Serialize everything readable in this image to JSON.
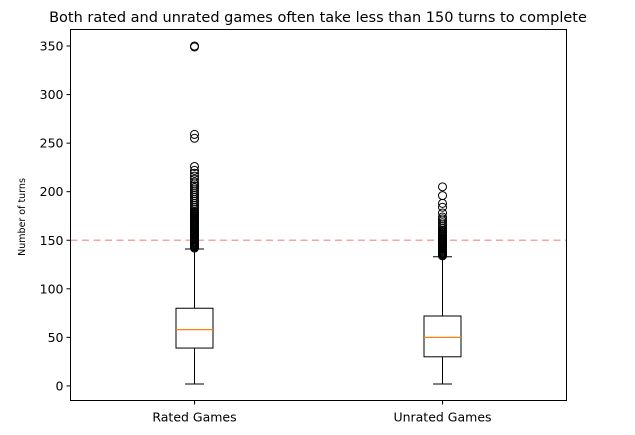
{
  "chart_data": {
    "type": "box",
    "title": "Both rated and unrated games often take less than 150 turns to complete",
    "xlabel": "",
    "ylabel": "Number of turns",
    "categories": [
      "Rated Games",
      "Unrated Games"
    ],
    "ylim": [
      -15,
      367
    ],
    "yticks": [
      0,
      50,
      100,
      150,
      200,
      250,
      300,
      350
    ],
    "grid": false,
    "reference_line": {
      "y": 150,
      "color": "#f4a6a6",
      "style": "dashed"
    },
    "colors": {
      "box": "#000000",
      "median": "#ff7f0e",
      "flier": "#000000"
    },
    "boxes": [
      {
        "name": "Rated Games",
        "whisker_low": 2,
        "q1": 39,
        "median": 58,
        "q3": 80,
        "whisker_high": 141,
        "fliers": [
          142,
          143,
          144,
          145,
          146,
          147,
          148,
          149,
          150,
          151,
          152,
          153,
          154,
          155,
          156,
          157,
          158,
          159,
          160,
          161,
          162,
          163,
          164,
          165,
          166,
          167,
          168,
          169,
          170,
          171,
          172,
          173,
          174,
          175,
          176,
          177,
          178,
          179,
          180,
          182,
          184,
          186,
          188,
          190,
          192,
          194,
          196,
          198,
          200,
          202,
          204,
          206,
          208,
          210,
          213,
          216,
          219,
          222,
          226,
          255,
          259,
          349,
          350
        ]
      },
      {
        "name": "Unrated Games",
        "whisker_low": 2,
        "q1": 30,
        "median": 50,
        "q3": 72,
        "whisker_high": 133,
        "fliers": [
          134,
          135,
          136,
          137,
          138,
          139,
          140,
          141,
          142,
          143,
          144,
          145,
          146,
          147,
          148,
          149,
          150,
          151,
          152,
          153,
          154,
          155,
          156,
          157,
          158,
          159,
          160,
          162,
          164,
          166,
          168,
          170,
          172,
          174,
          178,
          184,
          188,
          196,
          205
        ]
      }
    ]
  }
}
